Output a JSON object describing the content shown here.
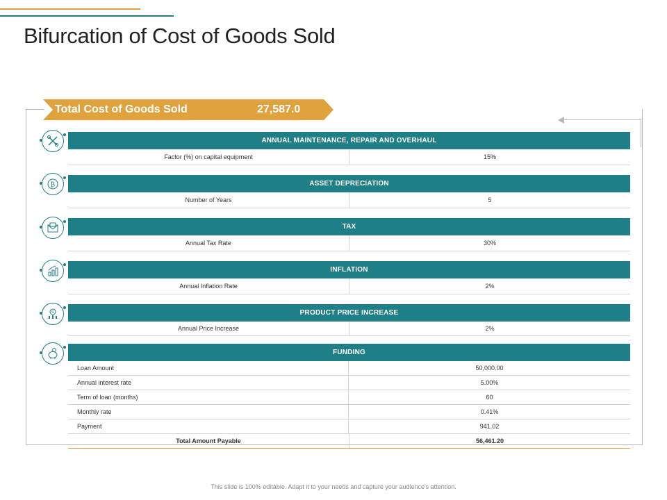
{
  "title": "Bifurcation of Cost of Goods Sold",
  "banner": {
    "label": "Total Cost of Goods Sold",
    "value": "27,587.0"
  },
  "colors": {
    "teal": "#1f7f86",
    "orange": "#e0a23c"
  },
  "sections": [
    {
      "heading": "ANNUAL  MAINTENANCE,  REPAIR AND OVERHAUL",
      "icon": "tools-icon",
      "rows": [
        {
          "label": "Factor (%) on capital equipment",
          "value": "15%"
        }
      ]
    },
    {
      "heading": "ASSET DEPRECIATION",
      "icon": "bitcoin-icon",
      "rows": [
        {
          "label": "Number of Years",
          "value": "5"
        }
      ]
    },
    {
      "heading": "TAX",
      "icon": "tax-envelope-icon",
      "rows": [
        {
          "label": "Annual Tax Rate",
          "value": "30%"
        }
      ]
    },
    {
      "heading": "INFLATION",
      "icon": "growth-chart-icon",
      "rows": [
        {
          "label": "Annual Inflation Rate",
          "value": "2%"
        }
      ]
    },
    {
      "heading": "PRODUCT PRICE INCREASE",
      "icon": "price-percent-icon",
      "rows": [
        {
          "label": "Annual Price Increase",
          "value": "2%"
        }
      ]
    },
    {
      "heading": "FUNDING",
      "icon": "piggy-bank-icon",
      "rows": [
        {
          "label": "Loan Amount",
          "value": "50,000.00"
        },
        {
          "label": "Annual interest rate",
          "value": "5.00%"
        },
        {
          "label": "Term of loan (months)",
          "value": "60"
        },
        {
          "label": "Monthly rate",
          "value": "0.41%"
        },
        {
          "label": "Payment",
          "value": "941.02"
        },
        {
          "label": "Total Amount Payable",
          "value": "56,461.20"
        }
      ]
    }
  ],
  "footer": "This slide is 100% editable. Adapt it to your needs and capture your audience's attention."
}
